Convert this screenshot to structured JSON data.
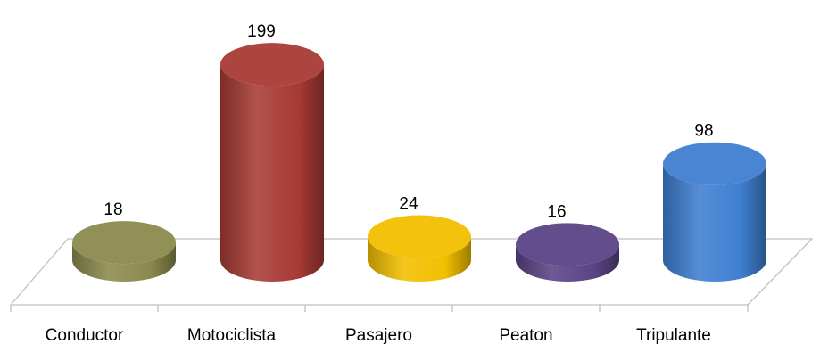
{
  "chart_data": {
    "type": "bar",
    "style": "3d-cylinder",
    "title": "",
    "xlabel": "",
    "ylabel": "",
    "categories": [
      "Conductor",
      "Motociclista",
      "Pasajero",
      "Peaton",
      "Tripulante"
    ],
    "values": [
      18,
      199,
      24,
      16,
      98
    ],
    "colors": [
      "#8b8a4e",
      "#a83a35",
      "#f2bf00",
      "#5b4486",
      "#3f7fd1"
    ],
    "ylim": [
      0,
      210
    ],
    "grid": false,
    "legend": "none",
    "data_labels": true
  }
}
